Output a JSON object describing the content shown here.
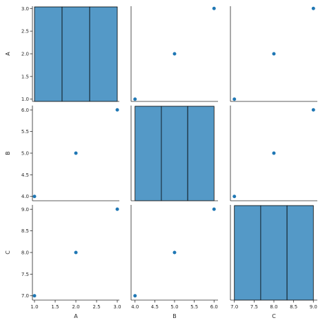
{
  "chart_data": {
    "type": "pairplot",
    "variables": [
      "A",
      "B",
      "C"
    ],
    "data": {
      "A": [
        1.0,
        2.0,
        3.0
      ],
      "B": [
        4.0,
        5.0,
        6.0
      ],
      "C": [
        7.0,
        8.0,
        9.0
      ]
    },
    "diagonal": {
      "type": "histogram",
      "bins": 3,
      "count": [
        1,
        1,
        1
      ]
    },
    "offdiagonal": {
      "type": "scatter"
    },
    "axes": {
      "A": {
        "range": [
          0.95,
          3.05
        ],
        "ticks": [
          1.0,
          1.5,
          2.0,
          2.5,
          3.0
        ],
        "tick_labels": [
          "1.0",
          "1.5",
          "2.0",
          "2.5",
          "3.0"
        ]
      },
      "B": {
        "range": [
          3.9,
          6.1
        ],
        "ticks": [
          4.0,
          4.5,
          5.0,
          5.5,
          6.0
        ],
        "tick_labels": [
          "4.0",
          "4.5",
          "5.0",
          "5.5",
          "6.0"
        ]
      },
      "C": {
        "range": [
          6.9,
          9.1
        ],
        "ticks": [
          7.0,
          7.5,
          8.0,
          8.5,
          9.0
        ],
        "tick_labels": [
          "7.0",
          "7.5",
          "8.0",
          "8.5",
          "9.0"
        ]
      }
    },
    "grid": false,
    "colors": {
      "point": "#1f77b4",
      "bar_fill": "#5499c7",
      "bar_edge": "#000000"
    }
  }
}
